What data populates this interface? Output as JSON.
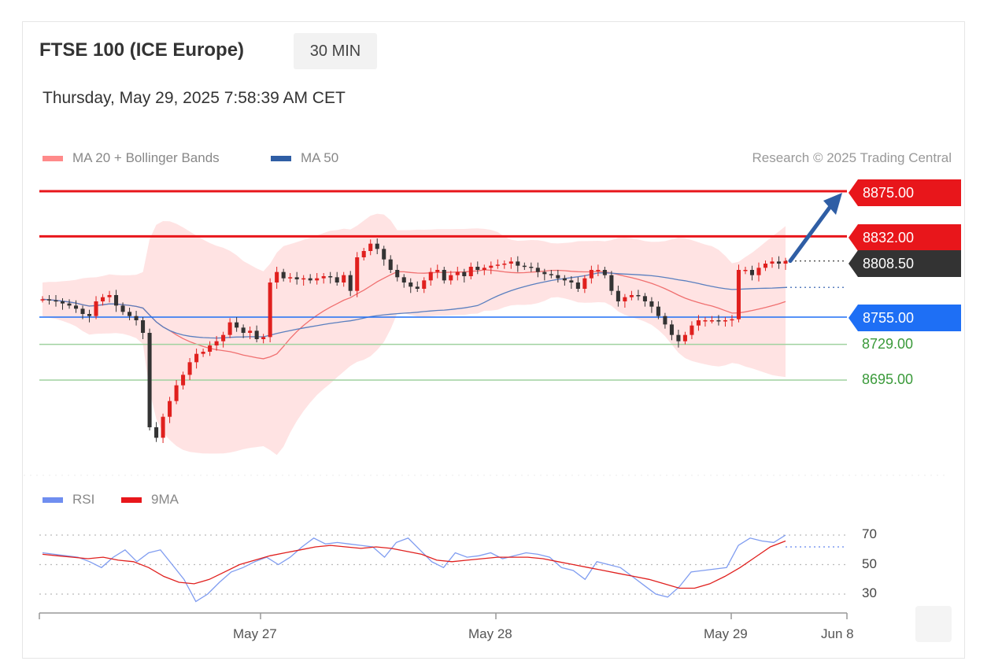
{
  "header": {
    "title": "FTSE 100 (ICE Europe)",
    "timeframe": "30 MIN",
    "datetime": "Thursday, May 29, 2025 7:58:39 AM CET",
    "credit": "Research © 2025 Trading Central"
  },
  "legend": {
    "ma20": "MA 20 + Bollinger Bands",
    "ma50": "MA 50",
    "rsi": "RSI",
    "ma9": "9MA"
  },
  "colors": {
    "resistance": "#e8161b",
    "pivot": "#1e6ff5",
    "support": "#3a9a3a",
    "last": "#333333",
    "up": "#e0201e",
    "down": "#333333",
    "bands": "#ffd9d9",
    "ma20": "#f07070",
    "ma50": "#5a7fbf",
    "rsi": "#7f9cf0",
    "arrow": "#2f5ea5"
  },
  "levels": {
    "r2": "8875.00",
    "r1": "8832.00",
    "last": "8808.50",
    "pivot": "8755.00",
    "s1": "8729.00",
    "s2": "8695.00"
  },
  "x_labels": [
    "May 27",
    "May 28",
    "May 29",
    "Jun 8"
  ],
  "rsi_ticks": [
    "70",
    "50",
    "30"
  ],
  "chart_data": {
    "type": "candlestick",
    "instrument": "FTSE 100 (ICE Europe)",
    "interval": "30 MIN",
    "price_range": [
      8615,
      8880
    ],
    "levels": {
      "resistance": [
        8875.0,
        8832.0
      ],
      "last": 8808.5,
      "pivot": 8755.0,
      "support": [
        8729.0,
        8695.0
      ]
    },
    "closes": [
      8772,
      8771,
      8770,
      8768,
      8766,
      8763,
      8758,
      8756,
      8770,
      8774,
      8776,
      8766,
      8760,
      8756,
      8752,
      8740,
      8650,
      8640,
      8660,
      8675,
      8690,
      8700,
      8712,
      8720,
      8722,
      8728,
      8732,
      8738,
      8750,
      8745,
      8740,
      8742,
      8734,
      8736,
      8788,
      8798,
      8792,
      8793,
      8791,
      8792,
      8790,
      8792,
      8794,
      8793,
      8788,
      8795,
      8780,
      8812,
      8818,
      8825,
      8820,
      8810,
      8800,
      8793,
      8788,
      8784,
      8782,
      8790,
      8798,
      8800,
      8790,
      8795,
      8798,
      8794,
      8803,
      8800,
      8802,
      8804,
      8805,
      8806,
      8808,
      8804,
      8803,
      8802,
      8798,
      8796,
      8795,
      8792,
      8790,
      8788,
      8782,
      8792,
      8800,
      8800,
      8795,
      8780,
      8770,
      8774,
      8776,
      8775,
      8770,
      8765,
      8756,
      8748,
      8738,
      8732,
      8738,
      8747,
      8752,
      8752,
      8752,
      8751,
      8752,
      8753,
      8800,
      8800,
      8795,
      8802,
      8806,
      8808,
      8806,
      8808.5
    ],
    "rsi": {
      "series": [
        {
          "name": "RSI",
          "values": [
            58,
            57,
            56,
            55,
            52,
            48,
            55,
            60,
            52,
            58,
            60,
            50,
            40,
            25,
            30,
            38,
            45,
            48,
            52,
            55,
            50,
            55,
            62,
            68,
            64,
            65,
            64,
            63,
            62,
            55,
            65,
            68,
            60,
            52,
            48,
            58,
            55,
            56,
            58,
            54,
            56,
            58,
            57,
            55,
            48,
            46,
            40,
            52,
            50,
            48,
            42,
            36,
            30,
            28,
            35,
            45,
            46,
            47,
            48,
            63,
            68,
            66,
            65,
            70
          ]
        },
        {
          "name": "9MA",
          "values": [
            57,
            56,
            55,
            54,
            55,
            53,
            52,
            48,
            42,
            38,
            37,
            40,
            45,
            50,
            53,
            56,
            58,
            60,
            62,
            63,
            62,
            61,
            62,
            61,
            59,
            57,
            53,
            52,
            53,
            54,
            55,
            55,
            55,
            54,
            52,
            50,
            48,
            46,
            44,
            42,
            40,
            37,
            34,
            34,
            37,
            42,
            48,
            55,
            62,
            66
          ]
        }
      ],
      "rsi_ticks": [
        70,
        50,
        30
      ]
    },
    "x_labels": [
      "May 27",
      "May 28",
      "May 29",
      "Jun 8"
    ],
    "ma_labels": [
      "MA 20 + Bollinger Bands",
      "MA 50"
    ]
  }
}
